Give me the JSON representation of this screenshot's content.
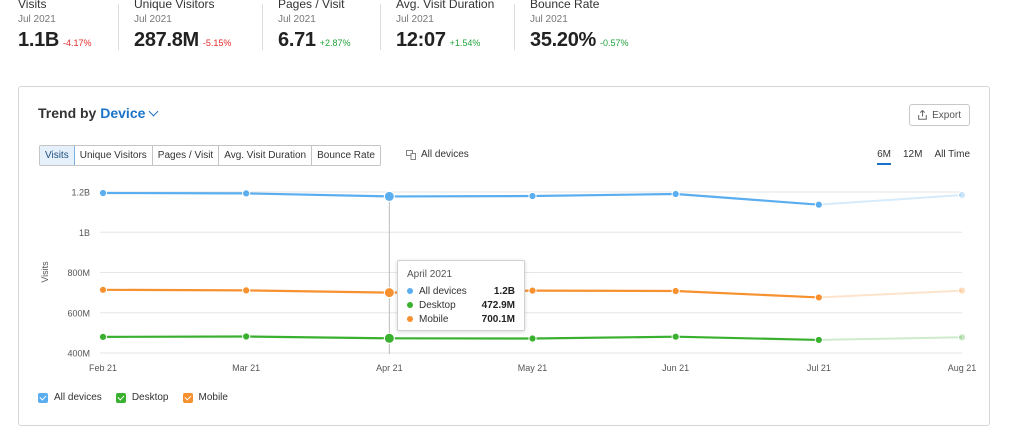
{
  "metrics": [
    {
      "label": "Visits",
      "period": "Jul 2021",
      "value": "1.1B",
      "delta": "-4.17%",
      "trend": "neg"
    },
    {
      "label": "Unique Visitors",
      "period": "Jul 2021",
      "value": "287.8M",
      "delta": "-5.15%",
      "trend": "neg"
    },
    {
      "label": "Pages / Visit",
      "period": "Jul 2021",
      "value": "6.71",
      "delta": "+2.87%",
      "trend": "pos"
    },
    {
      "label": "Avg. Visit Duration",
      "period": "Jul 2021",
      "value": "12:07",
      "delta": "+1.54%",
      "trend": "pos"
    },
    {
      "label": "Bounce Rate",
      "period": "Jul 2021",
      "value": "35.20%",
      "delta": "-0.57%",
      "trend": "neg"
    }
  ],
  "card": {
    "title_prefix": "Trend by",
    "title_dimension": "Device",
    "export_label": "Export",
    "tabs": [
      "Visits",
      "Unique Visitors",
      "Pages / Visit",
      "Avg. Visit Duration",
      "Bounce Rate"
    ],
    "active_tab": 0,
    "devices_filter": "All devices",
    "periods": [
      "6M",
      "12M",
      "All Time"
    ],
    "active_period": 0
  },
  "tooltip": {
    "title": "April 2021",
    "rows": [
      {
        "name": "All devices",
        "value": "1.2B",
        "color": "#5aaef0"
      },
      {
        "name": "Desktop",
        "value": "472.9M",
        "color": "#3ab02f"
      },
      {
        "name": "Mobile",
        "value": "700.1M",
        "color": "#f7902e"
      }
    ]
  },
  "legend": [
    {
      "name": "All devices",
      "color": "#5aaef0"
    },
    {
      "name": "Desktop",
      "color": "#3ab02f"
    },
    {
      "name": "Mobile",
      "color": "#f7902e"
    }
  ],
  "chart_data": {
    "type": "line",
    "categories": [
      "Feb 21",
      "Mar 21",
      "Apr 21",
      "May 21",
      "Jun 21",
      "Jul 21",
      "Aug 21"
    ],
    "ylabel": "Visits",
    "yticks": [
      400,
      600,
      800,
      1000,
      1200
    ],
    "ytick_labels": [
      "400M",
      "600M",
      "800M",
      "1B",
      "1.2B"
    ],
    "ylim": [
      400,
      1240
    ],
    "y_unit": "millions",
    "highlight_index": 2,
    "projected_from_index": 5,
    "grid": true,
    "series": [
      {
        "name": "All devices",
        "color": "#5aaef0",
        "values": [
          1195,
          1193,
          1178,
          1180,
          1190,
          1137,
          1185
        ]
      },
      {
        "name": "Desktop",
        "color": "#3ab02f",
        "values": [
          480,
          482,
          473,
          472,
          481,
          465,
          478
        ]
      },
      {
        "name": "Mobile",
        "color": "#f7902e",
        "values": [
          714,
          711,
          700,
          710,
          708,
          676,
          710
        ]
      }
    ]
  }
}
